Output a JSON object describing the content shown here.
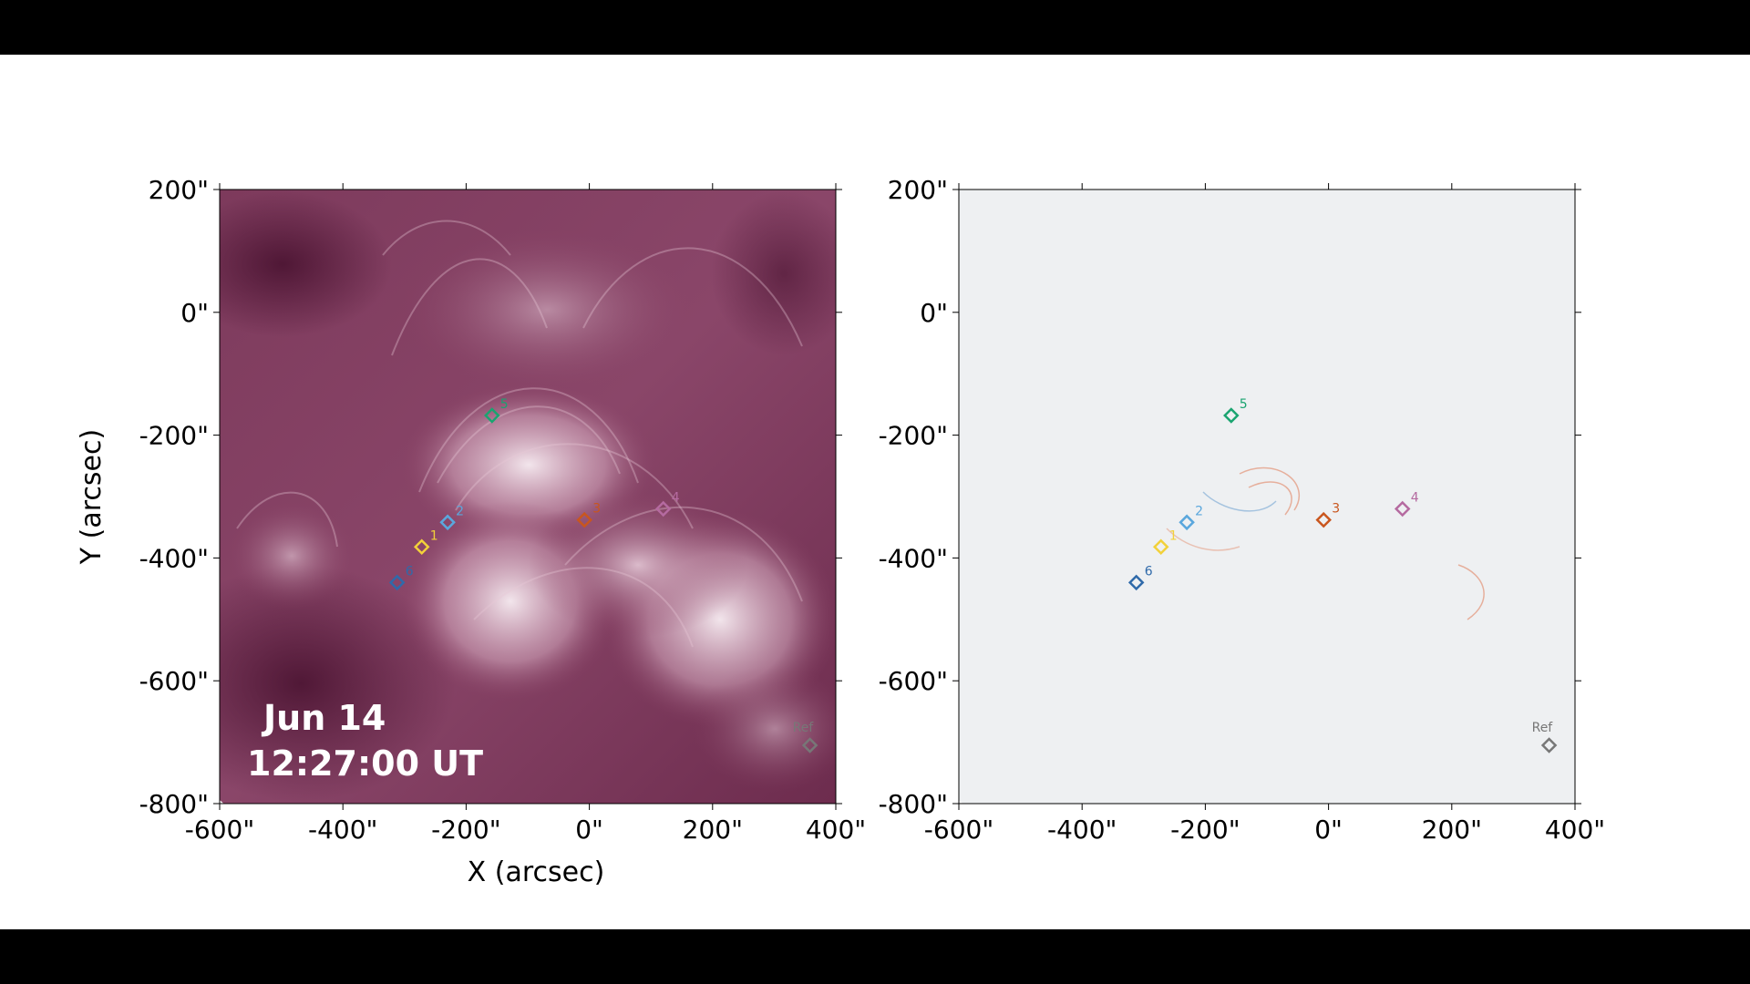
{
  "figure": {
    "x_axis_label": "X (arcsec)",
    "y_axis_label": "Y (arcsec)",
    "x_range": [
      -600,
      400
    ],
    "y_range": [
      -800,
      200
    ],
    "x_ticks": [
      -600,
      -400,
      -200,
      0,
      200,
      400
    ],
    "y_ticks": [
      200,
      0,
      -200,
      -400,
      -600,
      -800
    ],
    "tick_suffix": "\""
  },
  "left_panel": {
    "date_label": "Jun 14",
    "time_label": "12:27:00 UT",
    "colormap": "sdo-aia-171 (purple)"
  },
  "right_panel": {
    "colormap": "red-blue difference"
  },
  "markers": [
    {
      "label": "1",
      "x": -272,
      "y": -382,
      "color": "#f2d13a"
    },
    {
      "label": "2",
      "x": -230,
      "y": -342,
      "color": "#5aa7dd"
    },
    {
      "label": "3",
      "x": -8,
      "y": -338,
      "color": "#c9561e"
    },
    {
      "label": "4",
      "x": 120,
      "y": -320,
      "color": "#b56aa0"
    },
    {
      "label": "5",
      "x": -158,
      "y": -168,
      "color": "#1aa470"
    },
    {
      "label": "6",
      "x": -312,
      "y": -440,
      "color": "#2f6aaa"
    },
    {
      "label": "Ref",
      "x": 358,
      "y": -705,
      "color": "#777777"
    }
  ]
}
